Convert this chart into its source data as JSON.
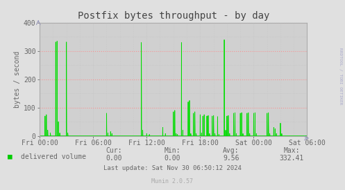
{
  "title": "Postfix bytes throughput - by day",
  "ylabel": "bytes / second",
  "background_color": "#e0e0e0",
  "plot_bg_color": "#d0d0d0",
  "grid_color_major": "#ff8888",
  "grid_color_minor": "#bbbbbb",
  "line_color": "#00dd00",
  "fill_color": "#00cc00",
  "ylim": [
    0,
    400
  ],
  "yticks": [
    0,
    100,
    200,
    300,
    400
  ],
  "xtick_labels": [
    "Fri 00:00",
    "Fri 06:00",
    "Fri 12:00",
    "Fri 18:00",
    "Sat 00:00",
    "Sat 06:00"
  ],
  "legend_label": "delivered volume",
  "legend_color": "#00cc00",
  "cur_label": "Cur:",
  "cur_val": "0.00",
  "min_label": "Min:",
  "min_val": "0.00",
  "avg_label": "Avg:",
  "avg_val": "9.56",
  "max_label": "Max:",
  "max_val": "332.41",
  "last_update": "Last update: Sat Nov 30 06:50:12 2024",
  "munin_label": "Munin 2.0.57",
  "rrd_label": "RRDTOOL / TOBI OETIKER",
  "title_color": "#444444",
  "axis_color": "#aaaaaa",
  "text_color": "#666666",
  "spike_data": [
    [
      0.02,
      70
    ],
    [
      0.025,
      75
    ],
    [
      0.03,
      20
    ],
    [
      0.04,
      10
    ],
    [
      0.06,
      332
    ],
    [
      0.065,
      335
    ],
    [
      0.07,
      50
    ],
    [
      0.075,
      10
    ],
    [
      0.1,
      332
    ],
    [
      0.105,
      10
    ],
    [
      0.25,
      80
    ],
    [
      0.255,
      10
    ],
    [
      0.265,
      15
    ],
    [
      0.27,
      8
    ],
    [
      0.38,
      330
    ],
    [
      0.385,
      20
    ],
    [
      0.4,
      8
    ],
    [
      0.41,
      5
    ],
    [
      0.46,
      30
    ],
    [
      0.47,
      8
    ],
    [
      0.5,
      85
    ],
    [
      0.505,
      90
    ],
    [
      0.51,
      8
    ],
    [
      0.515,
      5
    ],
    [
      0.53,
      330
    ],
    [
      0.535,
      20
    ],
    [
      0.555,
      120
    ],
    [
      0.56,
      125
    ],
    [
      0.565,
      8
    ],
    [
      0.575,
      80
    ],
    [
      0.58,
      85
    ],
    [
      0.585,
      8
    ],
    [
      0.6,
      75
    ],
    [
      0.605,
      10
    ],
    [
      0.61,
      70
    ],
    [
      0.615,
      75
    ],
    [
      0.625,
      70
    ],
    [
      0.63,
      72
    ],
    [
      0.635,
      8
    ],
    [
      0.645,
      70
    ],
    [
      0.65,
      72
    ],
    [
      0.655,
      8
    ],
    [
      0.665,
      68
    ],
    [
      0.67,
      5
    ],
    [
      0.69,
      340
    ],
    [
      0.695,
      20
    ],
    [
      0.7,
      70
    ],
    [
      0.705,
      72
    ],
    [
      0.71,
      8
    ],
    [
      0.725,
      80
    ],
    [
      0.73,
      82
    ],
    [
      0.735,
      8
    ],
    [
      0.75,
      80
    ],
    [
      0.755,
      82
    ],
    [
      0.76,
      8
    ],
    [
      0.775,
      80
    ],
    [
      0.78,
      82
    ],
    [
      0.785,
      8
    ],
    [
      0.8,
      80
    ],
    [
      0.805,
      82
    ],
    [
      0.81,
      8
    ],
    [
      0.85,
      80
    ],
    [
      0.855,
      82
    ],
    [
      0.86,
      8
    ],
    [
      0.875,
      30
    ],
    [
      0.88,
      25
    ],
    [
      0.885,
      8
    ],
    [
      0.9,
      45
    ],
    [
      0.905,
      8
    ]
  ]
}
